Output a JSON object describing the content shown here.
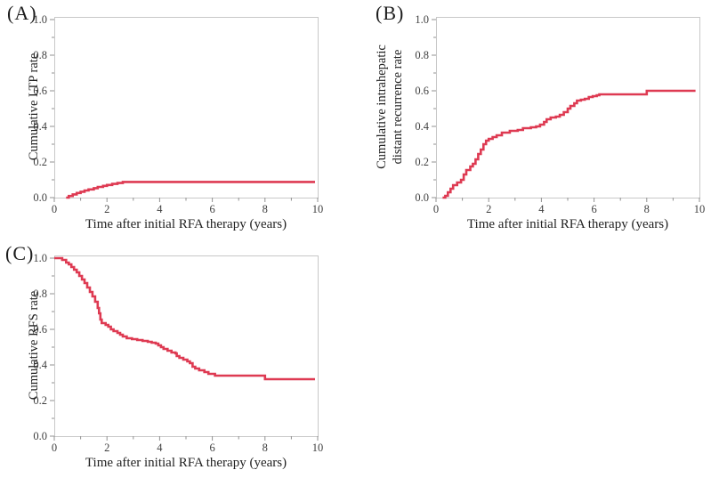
{
  "figure": {
    "background": "#ffffff",
    "line_color": "#de3a52",
    "frame_color": "#c8c8c8",
    "tick_color": "#909090",
    "tick_label_color": "#3f3f3f",
    "text_color": "#1c1c1c"
  },
  "chart_data": [
    {
      "type": "line",
      "subtype": "kaplan-meier-step",
      "panel_label": "(A)",
      "ylabel_lines": [
        "Cumulative LTP rate"
      ],
      "xlabel": "Time after initial RFA therapy (years)",
      "xlim": [
        0,
        10
      ],
      "ylim": [
        0,
        1
      ],
      "xticks": [
        0,
        2,
        4,
        6,
        8,
        10
      ],
      "xticklabels": [
        "0",
        "2",
        "4",
        "6",
        "8",
        "10"
      ],
      "x_minor_ticks": [
        1,
        3,
        5,
        7,
        9
      ],
      "yticks": [
        0,
        0.2,
        0.4,
        0.6,
        0.8,
        1
      ],
      "yticklabels": [
        "0.0",
        "0.2",
        "0.4",
        "0.6",
        "0.8",
        "1.0"
      ],
      "y_minor_ticks": [
        0.1,
        0.3,
        0.5,
        0.7,
        0.9
      ],
      "grid": false,
      "points": [
        [
          0.45,
          0
        ],
        [
          0.55,
          0.009
        ],
        [
          0.7,
          0.018
        ],
        [
          0.85,
          0.026
        ],
        [
          1.0,
          0.033
        ],
        [
          1.15,
          0.04
        ],
        [
          1.3,
          0.046
        ],
        [
          1.5,
          0.053
        ],
        [
          1.65,
          0.06
        ],
        [
          1.85,
          0.066
        ],
        [
          2.0,
          0.071
        ],
        [
          2.2,
          0.077
        ],
        [
          2.4,
          0.082
        ],
        [
          2.6,
          0.088
        ],
        [
          9.9,
          0.088
        ]
      ]
    },
    {
      "type": "line",
      "subtype": "kaplan-meier-step",
      "panel_label": "(B)",
      "ylabel_lines": [
        "Cumulative intrahepatic",
        "distant recurrence rate"
      ],
      "xlabel": "Time after initial RFA therapy (years)",
      "xlim": [
        0,
        10
      ],
      "ylim": [
        0,
        1
      ],
      "xticks": [
        0,
        2,
        4,
        6,
        8,
        10
      ],
      "xticklabels": [
        "0",
        "2",
        "4",
        "6",
        "8",
        "10"
      ],
      "x_minor_ticks": [
        1,
        3,
        5,
        7,
        9
      ],
      "yticks": [
        0,
        0.2,
        0.4,
        0.6,
        0.8,
        1
      ],
      "yticklabels": [
        "0.0",
        "0.2",
        "0.4",
        "0.6",
        "0.8",
        "1.0"
      ],
      "y_minor_ticks": [
        0.1,
        0.3,
        0.5,
        0.7,
        0.9
      ],
      "grid": false,
      "points": [
        [
          0.25,
          0
        ],
        [
          0.35,
          0.01
        ],
        [
          0.45,
          0.03
        ],
        [
          0.55,
          0.05
        ],
        [
          0.65,
          0.07
        ],
        [
          0.8,
          0.085
        ],
        [
          0.95,
          0.1
        ],
        [
          1.05,
          0.13
        ],
        [
          1.15,
          0.155
        ],
        [
          1.3,
          0.175
        ],
        [
          1.4,
          0.19
        ],
        [
          1.5,
          0.215
        ],
        [
          1.6,
          0.245
        ],
        [
          1.7,
          0.27
        ],
        [
          1.8,
          0.3
        ],
        [
          1.9,
          0.32
        ],
        [
          2.0,
          0.33
        ],
        [
          2.15,
          0.34
        ],
        [
          2.3,
          0.35
        ],
        [
          2.5,
          0.365
        ],
        [
          2.8,
          0.375
        ],
        [
          3.1,
          0.38
        ],
        [
          3.3,
          0.39
        ],
        [
          3.6,
          0.395
        ],
        [
          3.8,
          0.4
        ],
        [
          3.95,
          0.41
        ],
        [
          4.1,
          0.425
        ],
        [
          4.2,
          0.44
        ],
        [
          4.35,
          0.45
        ],
        [
          4.55,
          0.455
        ],
        [
          4.7,
          0.465
        ],
        [
          4.85,
          0.48
        ],
        [
          5.0,
          0.5
        ],
        [
          5.1,
          0.515
        ],
        [
          5.25,
          0.53
        ],
        [
          5.35,
          0.545
        ],
        [
          5.5,
          0.55
        ],
        [
          5.65,
          0.555
        ],
        [
          5.8,
          0.565
        ],
        [
          5.95,
          0.57
        ],
        [
          6.1,
          0.575
        ],
        [
          6.2,
          0.58
        ],
        [
          8.0,
          0.6
        ],
        [
          9.85,
          0.6
        ]
      ]
    },
    {
      "type": "line",
      "subtype": "kaplan-meier-step",
      "panel_label": "(C)",
      "ylabel_lines": [
        "Cumulative RFS rate"
      ],
      "xlabel": "Time after initial RFA therapy (years)",
      "xlim": [
        0,
        10
      ],
      "ylim": [
        0,
        1
      ],
      "xticks": [
        0,
        2,
        4,
        6,
        8,
        10
      ],
      "xticklabels": [
        "0",
        "2",
        "4",
        "6",
        "8",
        "10"
      ],
      "x_minor_ticks": [
        1,
        3,
        5,
        7,
        9
      ],
      "yticks": [
        0,
        0.2,
        0.4,
        0.6,
        0.8,
        1
      ],
      "yticklabels": [
        "0.0",
        "0.2",
        "0.4",
        "0.6",
        "0.8",
        "1.0"
      ],
      "y_minor_ticks": [
        0.1,
        0.3,
        0.5,
        0.7,
        0.9
      ],
      "grid": false,
      "points": [
        [
          0,
          1.0
        ],
        [
          0.3,
          0.99
        ],
        [
          0.45,
          0.975
        ],
        [
          0.55,
          0.965
        ],
        [
          0.65,
          0.95
        ],
        [
          0.75,
          0.935
        ],
        [
          0.85,
          0.92
        ],
        [
          0.95,
          0.9
        ],
        [
          1.05,
          0.88
        ],
        [
          1.15,
          0.86
        ],
        [
          1.25,
          0.835
        ],
        [
          1.35,
          0.81
        ],
        [
          1.45,
          0.785
        ],
        [
          1.55,
          0.755
        ],
        [
          1.65,
          0.72
        ],
        [
          1.7,
          0.69
        ],
        [
          1.75,
          0.655
        ],
        [
          1.8,
          0.635
        ],
        [
          1.95,
          0.625
        ],
        [
          2.05,
          0.615
        ],
        [
          2.15,
          0.6
        ],
        [
          2.25,
          0.59
        ],
        [
          2.4,
          0.58
        ],
        [
          2.5,
          0.57
        ],
        [
          2.6,
          0.56
        ],
        [
          2.75,
          0.55
        ],
        [
          2.95,
          0.545
        ],
        [
          3.15,
          0.54
        ],
        [
          3.35,
          0.535
        ],
        [
          3.55,
          0.53
        ],
        [
          3.7,
          0.525
        ],
        [
          3.85,
          0.52
        ],
        [
          3.95,
          0.51
        ],
        [
          4.05,
          0.5
        ],
        [
          4.15,
          0.49
        ],
        [
          4.3,
          0.48
        ],
        [
          4.45,
          0.47
        ],
        [
          4.6,
          0.465
        ],
        [
          4.65,
          0.45
        ],
        [
          4.75,
          0.44
        ],
        [
          4.9,
          0.43
        ],
        [
          5.05,
          0.42
        ],
        [
          5.15,
          0.41
        ],
        [
          5.25,
          0.39
        ],
        [
          5.35,
          0.38
        ],
        [
          5.5,
          0.37
        ],
        [
          5.7,
          0.36
        ],
        [
          5.85,
          0.35
        ],
        [
          6.1,
          0.34
        ],
        [
          8.0,
          0.32
        ],
        [
          9.9,
          0.32
        ]
      ]
    }
  ]
}
